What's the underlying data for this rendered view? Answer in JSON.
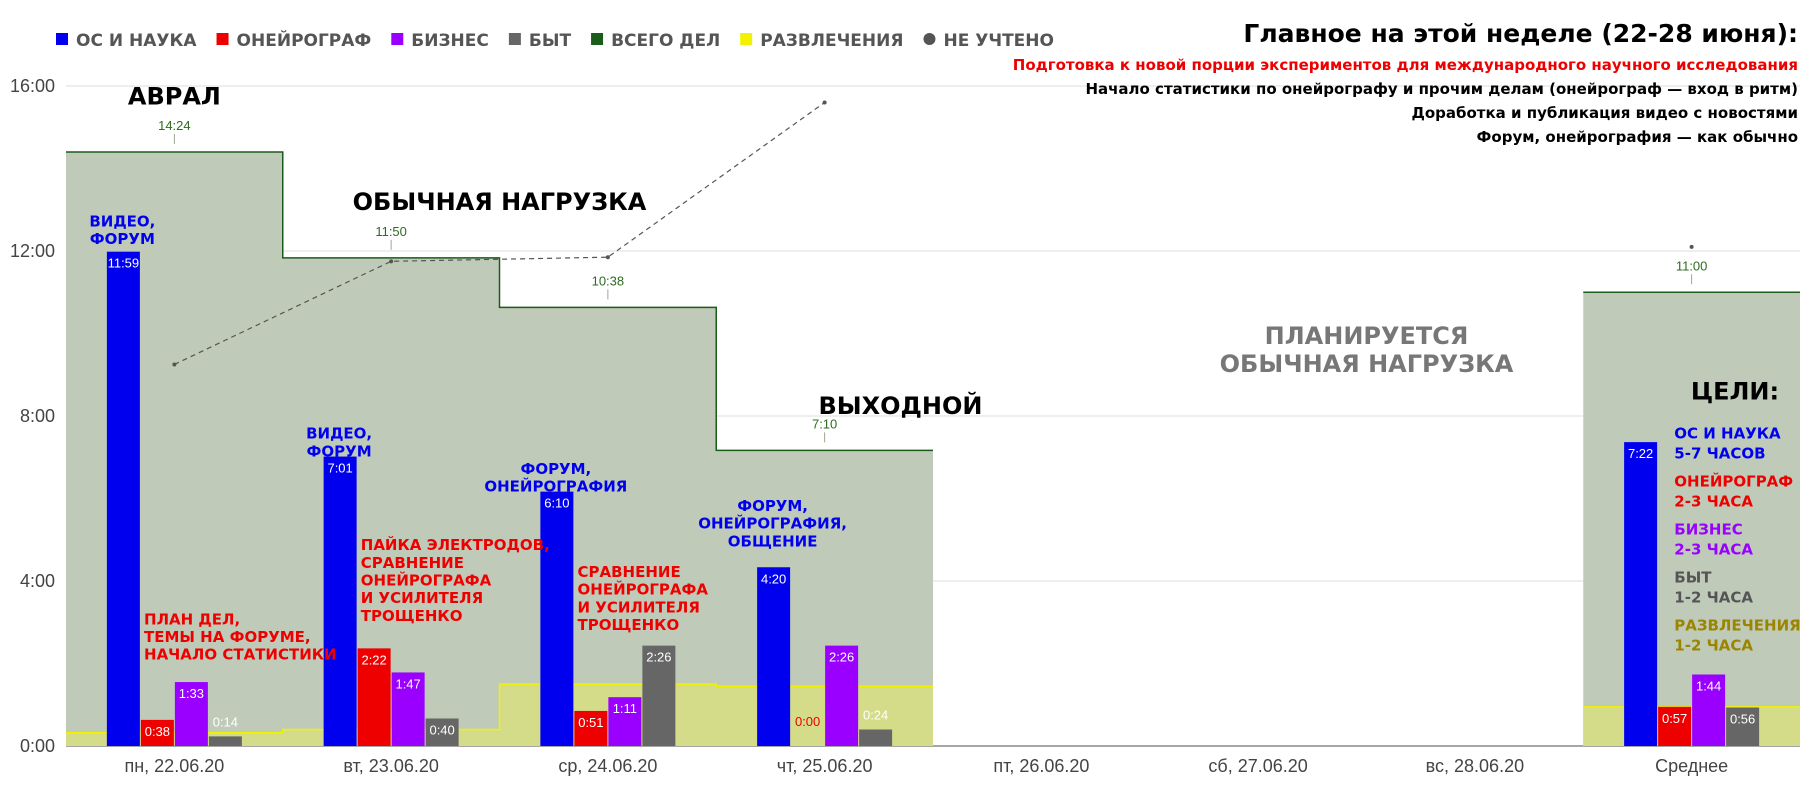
{
  "chart_data": {
    "type": "bar",
    "categories": [
      "пн, 22.06.20",
      "вт, 23.06.20",
      "ср, 24.06.20",
      "чт, 25.06.20",
      "пт, 26.06.20",
      "сб, 27.06.20",
      "вс, 28.06.20",
      "Среднее"
    ],
    "y_ticks": [
      "0:00",
      "4:00",
      "8:00",
      "12:00",
      "16:00"
    ],
    "ylim_hours": [
      0,
      16
    ],
    "grid": true,
    "legend_position": "top-left",
    "colors": {
      "os": "#0000ee",
      "oneiro": "#ee0000",
      "business": "#9900ff",
      "byt": "#666666",
      "total_area": "#bfcbb8",
      "total_line": "#1a5c1a",
      "fun_area": "#d4dc8a",
      "fun_line": "#f2f200",
      "unaccounted": "#555555",
      "fun_text": "#9a8400"
    },
    "legend": [
      {
        "label": "ОС и наука",
        "color": "#0000ee",
        "shape": "square"
      },
      {
        "label": "Онейрограф",
        "color": "#ee0000",
        "shape": "square"
      },
      {
        "label": "Бизнес",
        "color": "#9900ff",
        "shape": "square"
      },
      {
        "label": "Быт",
        "color": "#666666",
        "shape": "square"
      },
      {
        "label": "Всего дел",
        "color": "#1a5c1a",
        "shape": "square"
      },
      {
        "label": "Развлечения",
        "color": "#f2f200",
        "shape": "square"
      },
      {
        "label": "Не учтено",
        "color": "#555555",
        "shape": "circle"
      }
    ],
    "series": [
      {
        "key": "os",
        "values": [
          11.9833,
          7.0167,
          6.1667,
          4.3333,
          null,
          null,
          null,
          7.3667
        ],
        "labels": [
          "11:59",
          "7:01",
          "6:10",
          "4:20",
          "",
          "",
          "",
          "7:22"
        ]
      },
      {
        "key": "oneiro",
        "values": [
          0.6333,
          2.3667,
          0.85,
          0,
          null,
          null,
          null,
          0.95
        ],
        "labels": [
          "0:38",
          "2:22",
          "0:51",
          "0:00",
          "",
          "",
          "",
          "0:57"
        ]
      },
      {
        "key": "business",
        "values": [
          1.55,
          1.7833,
          1.1833,
          2.4333,
          null,
          null,
          null,
          1.7333
        ],
        "labels": [
          "1:33",
          "1:47",
          "1:11",
          "2:26",
          "",
          "",
          "",
          "1:44"
        ]
      },
      {
        "key": "byt",
        "values": [
          0.2333,
          0.6667,
          2.4333,
          0.4,
          null,
          null,
          null,
          0.9333
        ],
        "labels": [
          "0:14",
          "0:40",
          "2:26",
          "0:24",
          "",
          "",
          "",
          "0:56"
        ]
      }
    ],
    "total": {
      "values": [
        14.4,
        11.8333,
        10.6333,
        7.1667,
        null,
        null,
        null,
        11.0
      ],
      "labels": [
        "14:24",
        "11:50",
        "10:38",
        "7:10",
        "",
        "",
        "",
        "11:00"
      ]
    },
    "fun": {
      "values": [
        0.32,
        0.4,
        1.5,
        1.45,
        null,
        null,
        null,
        0.95
      ]
    },
    "unaccounted": {
      "values": [
        9.25,
        11.75,
        11.85,
        15.6,
        null,
        null,
        null,
        12.1
      ]
    },
    "annotations": [
      {
        "text": [
          "Аврал"
        ],
        "day": 0,
        "y": 15.55,
        "color": "#000000",
        "size": 24
      },
      {
        "text": [
          "Обычная нагрузка"
        ],
        "day": 1.5,
        "y": 13.0,
        "color": "#000000",
        "size": 24
      },
      {
        "text": [
          "Выходной"
        ],
        "day": 3.35,
        "y": 8.05,
        "color": "#000000",
        "size": 24
      },
      {
        "text": [
          "Планируется",
          "обычная нагрузка"
        ],
        "day": 5.5,
        "y": 9.75,
        "color": "#777777",
        "size": 24
      },
      {
        "text": [
          "Цели:"
        ],
        "day": 7.2,
        "y": 8.4,
        "color": "#000000",
        "size": 24
      },
      {
        "text": [
          "видео,",
          "форум"
        ],
        "day": -0.24,
        "y": 12.6,
        "color": "#0000ee",
        "size": 15
      },
      {
        "text": [
          "видео,",
          "форум"
        ],
        "day": 0.76,
        "y": 7.45,
        "color": "#0000ee",
        "size": 15
      },
      {
        "text": [
          "форум,",
          "онейрография"
        ],
        "day": 1.76,
        "y": 6.6,
        "color": "#0000ee",
        "size": 15
      },
      {
        "text": [
          "форум,",
          "онейрография,",
          "общение"
        ],
        "day": 2.76,
        "y": 5.7,
        "color": "#0000ee",
        "size": 15
      },
      {
        "text": [
          "план дел,",
          "темы на форуме,",
          "начало статистики"
        ],
        "day": -0.14,
        "y": 2.95,
        "color": "#ee0000",
        "size": 15,
        "anchor": "start"
      },
      {
        "text": [
          "пайка электродов,",
          "сравнение",
          "онейрографа",
          "и усилителя",
          "Трощенко"
        ],
        "day": 0.86,
        "y": 4.75,
        "color": "#ee0000",
        "size": 15,
        "anchor": "start"
      },
      {
        "text": [
          "сравнение",
          "онейрографа",
          "и усилителя",
          "Трощенко"
        ],
        "day": 1.86,
        "y": 4.1,
        "color": "#ee0000",
        "size": 15,
        "anchor": "start"
      }
    ],
    "goals": [
      {
        "lines": [
          "ОС и наука",
          "5-7 часов"
        ],
        "color": "#0000ee"
      },
      {
        "lines": [
          "онейрограф",
          "2-3 часа"
        ],
        "color": "#ee0000"
      },
      {
        "lines": [
          "бизнес",
          "2-3 часа"
        ],
        "color": "#9900ff"
      },
      {
        "lines": [
          "быт",
          "1-2 часа"
        ],
        "color": "#555555"
      },
      {
        "lines": [
          "развлечения",
          "1-2 часа"
        ],
        "color": "#9a8400"
      }
    ]
  },
  "summary": {
    "title": "Главное на этой неделе (22-28 июня):",
    "lines": [
      {
        "text": "Подготовка к новой порции экспериментов для международного научного исследования",
        "color": "#ee0000"
      },
      {
        "text": "Начало статистики по онейрографу и прочим делам (онейрограф — вход в ритм)",
        "color": "#000000"
      },
      {
        "text": "Доработка и публикация видео с новостями",
        "color": "#000000"
      },
      {
        "text": "Форум, онейрография — как обычно",
        "color": "#000000"
      }
    ]
  }
}
